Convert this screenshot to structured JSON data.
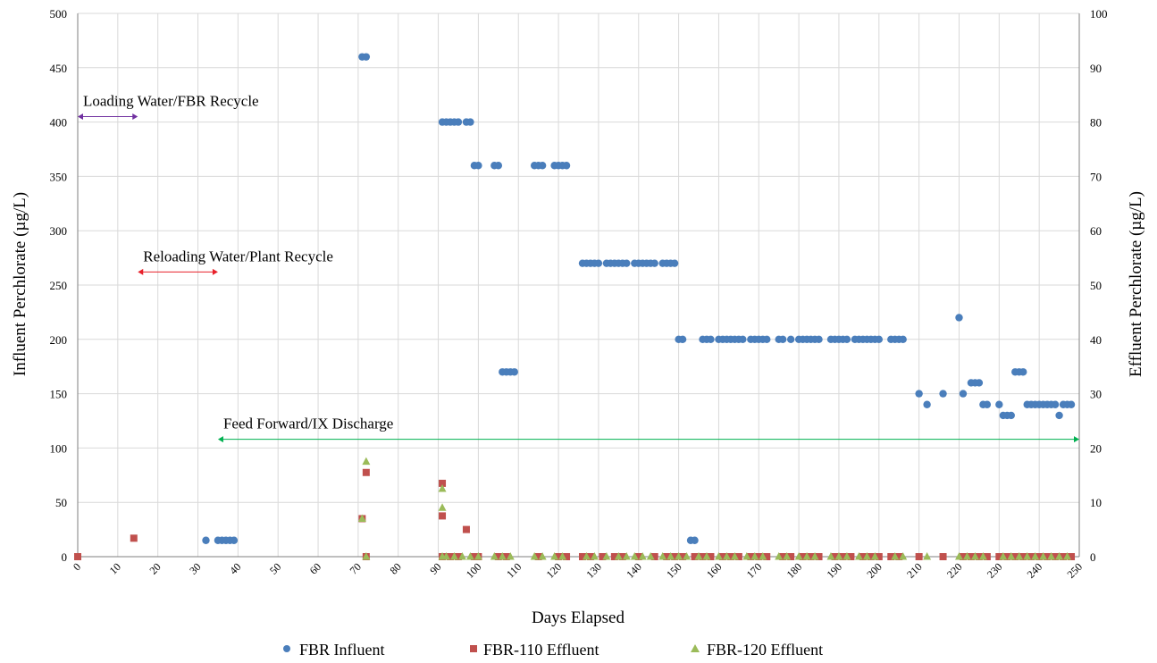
{
  "chart_data": {
    "type": "scatter",
    "xlabel": "Days Elapsed",
    "ylabel_left": "Influent Perchlorate (µg/L)",
    "ylabel_right": "Effluent Perchlorate (µg/L)",
    "xlim": [
      0,
      250
    ],
    "ylim_left": [
      0,
      500
    ],
    "ylim_right": [
      0,
      100
    ],
    "x_ticks": [
      "0",
      "10",
      "20",
      "30",
      "40",
      "50",
      "60",
      "70",
      "80",
      "90",
      "100",
      "110",
      "120",
      "130",
      "140",
      "150",
      "160",
      "170",
      "180",
      "190",
      "200",
      "210",
      "220",
      "230",
      "240",
      "250"
    ],
    "y_left_ticks": [
      "0",
      "50",
      "100",
      "150",
      "200",
      "250",
      "300",
      "350",
      "400",
      "450",
      "500"
    ],
    "y_right_ticks": [
      "0",
      "10",
      "20",
      "30",
      "40",
      "50",
      "60",
      "70",
      "80",
      "90",
      "100"
    ],
    "grid": true,
    "legend_position": "bottom",
    "series": [
      {
        "name": "FBR Influent",
        "axis": "left",
        "marker": "circle",
        "color": "#4a7ebb",
        "x": [
          32,
          35,
          36,
          37,
          38,
          39,
          71,
          72,
          91,
          92,
          93,
          94,
          95,
          97,
          98,
          99,
          100,
          104,
          105,
          106,
          107,
          108,
          109,
          114,
          115,
          116,
          119,
          120,
          121,
          122,
          126,
          127,
          128,
          129,
          130,
          132,
          133,
          134,
          135,
          136,
          137,
          139,
          140,
          141,
          142,
          143,
          144,
          146,
          147,
          148,
          149,
          150,
          151,
          153,
          154,
          156,
          157,
          158,
          160,
          161,
          162,
          163,
          164,
          165,
          166,
          168,
          169,
          170,
          171,
          172,
          175,
          176,
          178,
          180,
          181,
          182,
          183,
          184,
          185,
          188,
          189,
          190,
          191,
          192,
          194,
          195,
          196,
          197,
          198,
          199,
          200,
          203,
          204,
          205,
          206,
          210,
          212,
          216,
          220,
          221,
          223,
          224,
          225,
          226,
          227,
          230,
          231,
          232,
          233,
          234,
          235,
          236,
          237,
          238,
          239,
          240,
          241,
          242,
          243,
          244,
          245,
          246,
          247,
          248
        ],
        "y": [
          15,
          15,
          15,
          15,
          15,
          15,
          460,
          460,
          400,
          400,
          400,
          400,
          400,
          400,
          400,
          360,
          360,
          360,
          360,
          170,
          170,
          170,
          170,
          360,
          360,
          360,
          360,
          360,
          360,
          360,
          270,
          270,
          270,
          270,
          270,
          270,
          270,
          270,
          270,
          270,
          270,
          270,
          270,
          270,
          270,
          270,
          270,
          270,
          270,
          270,
          270,
          200,
          200,
          15,
          15,
          200,
          200,
          200,
          200,
          200,
          200,
          200,
          200,
          200,
          200,
          200,
          200,
          200,
          200,
          200,
          200,
          200,
          200,
          200,
          200,
          200,
          200,
          200,
          200,
          200,
          200,
          200,
          200,
          200,
          200,
          200,
          200,
          200,
          200,
          200,
          200,
          200,
          200,
          200,
          200,
          150,
          140,
          150,
          220,
          150,
          160,
          160,
          160,
          140,
          140,
          140,
          130,
          130,
          130,
          170,
          170,
          170,
          140,
          140,
          140,
          140,
          140,
          140,
          140,
          140,
          130,
          140,
          140,
          140
        ]
      },
      {
        "name": "FBR-110 Effluent",
        "axis": "right",
        "marker": "square",
        "color": "#c0504d",
        "x": [
          0,
          14,
          71,
          72,
          72,
          91,
          91,
          91,
          97,
          93,
          95,
          99,
          100,
          105,
          107,
          115,
          120,
          122,
          126,
          128,
          131,
          134,
          136,
          140,
          144,
          147,
          149,
          151,
          154,
          156,
          158,
          161,
          163,
          165,
          168,
          170,
          172,
          176,
          178,
          181,
          183,
          185,
          189,
          191,
          193,
          196,
          198,
          200,
          203,
          205,
          210,
          216,
          221,
          223,
          225,
          227,
          230,
          232,
          234,
          236,
          238,
          240,
          242,
          244,
          246,
          248
        ],
        "y": [
          0,
          3.4,
          7,
          15.5,
          0,
          13.5,
          7.5,
          0,
          5,
          0,
          0,
          0,
          0,
          0,
          0,
          0,
          0,
          0,
          0,
          0,
          0,
          0,
          0,
          0,
          0,
          0,
          0,
          0,
          0,
          0,
          0,
          0,
          0,
          0,
          0,
          0,
          0,
          0,
          0,
          0,
          0,
          0,
          0,
          0,
          0,
          0,
          0,
          0,
          0,
          0,
          0,
          0,
          0,
          0,
          0,
          0,
          0,
          0,
          0,
          0,
          0,
          0,
          0,
          0,
          0,
          0
        ]
      },
      {
        "name": "FBR-120 Effluent",
        "axis": "right",
        "marker": "triangle",
        "color": "#9bbb59",
        "x": [
          71,
          72,
          72,
          91,
          91,
          91,
          92,
          94,
          96,
          98,
          100,
          104,
          106,
          108,
          114,
          116,
          119,
          121,
          127,
          129,
          132,
          135,
          137,
          139,
          141,
          143,
          146,
          148,
          150,
          152,
          155,
          157,
          160,
          162,
          164,
          167,
          169,
          171,
          175,
          177,
          180,
          182,
          184,
          188,
          190,
          192,
          195,
          197,
          199,
          204,
          206,
          212,
          220,
          222,
          224,
          226,
          231,
          233,
          235,
          237,
          239,
          241,
          243,
          245,
          247
        ],
        "y": [
          7,
          17.5,
          0,
          12.5,
          9,
          0,
          0,
          0,
          0,
          0,
          0,
          0,
          0,
          0,
          0,
          0,
          0,
          0,
          0,
          0,
          0,
          0,
          0,
          0,
          0,
          0,
          0,
          0,
          0,
          0,
          0,
          0,
          0,
          0,
          0,
          0,
          0,
          0,
          0,
          0,
          0,
          0,
          0,
          0,
          0,
          0,
          0,
          0,
          0,
          0,
          0,
          0,
          0,
          0,
          0,
          0,
          0,
          0,
          0,
          0,
          0,
          0,
          0,
          0,
          0
        ]
      }
    ],
    "annotations": [
      {
        "text": "Loading Water/FBR Recycle",
        "x_start": 0,
        "x_end": 15,
        "y": 405,
        "color": "#7030a0"
      },
      {
        "text": "Reloading Water/Plant Recycle",
        "x_start": 15,
        "x_end": 35,
        "y": 262,
        "color": "#e8202a"
      },
      {
        "text": "Feed Forward/IX Discharge",
        "x_start": 35,
        "x_end": 250,
        "y": 108,
        "color": "#00b050"
      }
    ]
  }
}
